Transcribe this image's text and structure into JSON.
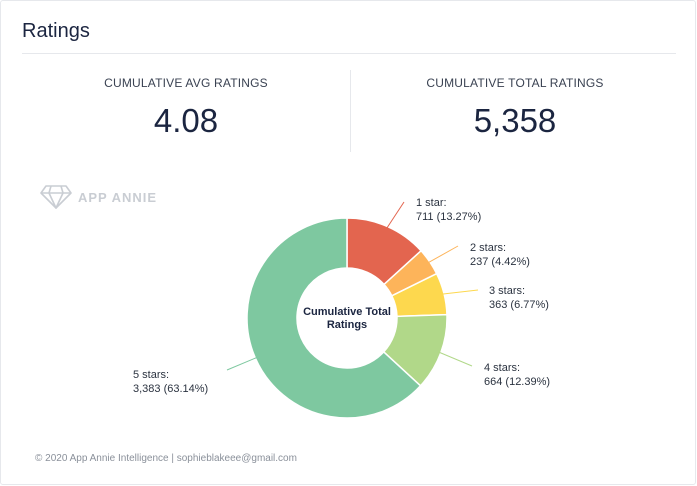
{
  "header": {
    "title": "Ratings"
  },
  "stats": {
    "avg_label": "CUMULATIVE AVG RATINGS",
    "avg_value": "4.08",
    "total_label": "CUMULATIVE TOTAL RATINGS",
    "total_value": "5,358"
  },
  "watermark": {
    "text": "APP ANNIE",
    "icon": "diamond-logo-icon"
  },
  "chart_data": {
    "type": "pie",
    "center_label": [
      "Cumulative Total",
      "Ratings"
    ],
    "slices": [
      {
        "name": "1 star",
        "label": "1 star:",
        "value": 711,
        "value_label": "711 (13.27%)",
        "color": "#e3654f"
      },
      {
        "name": "2 stars",
        "label": "2 stars:",
        "value": 237,
        "value_label": "237 (4.42%)",
        "color": "#fdb45a"
      },
      {
        "name": "3 stars",
        "label": "3 stars:",
        "value": 363,
        "value_label": "363 (6.77%)",
        "color": "#fdd84e"
      },
      {
        "name": "4 stars",
        "label": "4 stars:",
        "value": 664,
        "value_label": "664 (12.39%)",
        "color": "#b1d889"
      },
      {
        "name": "5 stars",
        "label": "5 stars:",
        "value": 3383,
        "value_label": "3,383 (63.14%)",
        "color": "#7ec8a0"
      }
    ]
  },
  "footer": {
    "text": "© 2020 App Annie Intelligence | sophieblakeee@gmail.com"
  }
}
